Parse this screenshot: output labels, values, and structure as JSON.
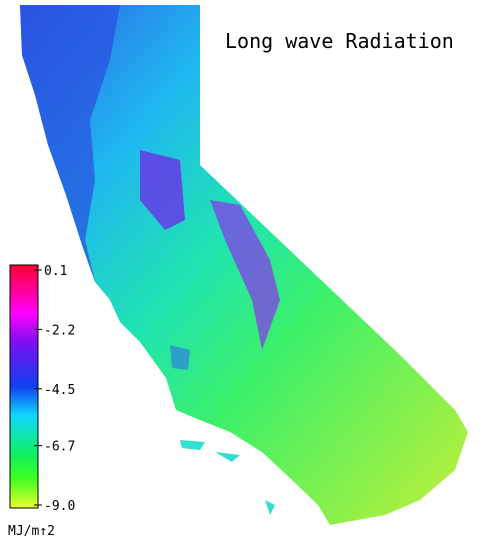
{
  "title": "Long wave Radiation",
  "colorbar": {
    "lim": [
      -9,
      0.1
    ],
    "ticks": [
      0.1,
      -2.2,
      -4.5,
      -6.7,
      {
        "value": -9,
        "label": "-9.0"
      }
    ],
    "unit": "MJ/m↑2"
  }
}
